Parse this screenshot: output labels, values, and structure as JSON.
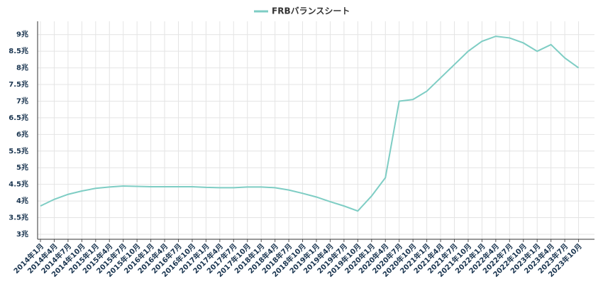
{
  "chart_data": {
    "type": "line",
    "categories": [
      "2014年1月",
      "2014年4月",
      "2014年7月",
      "2014年10月",
      "2015年1月",
      "2015年4月",
      "2015年7月",
      "2015年10月",
      "2016年1月",
      "2016年4月",
      "2016年7月",
      "2016年10月",
      "2017年1月",
      "2017年4月",
      "2017年7月",
      "2017年10月",
      "2018年1月",
      "2018年4月",
      "2018年7月",
      "2018年10月",
      "2019年1月",
      "2019年4月",
      "2019年7月",
      "2019年10月",
      "2020年1月",
      "2020年4月",
      "2020年7月",
      "2020年10月",
      "2021年1月",
      "2021年4月",
      "2021年7月",
      "2021年10月",
      "2022年1月",
      "2022年4月",
      "2022年7月",
      "2022年10月",
      "2023年1月",
      "2023年4月",
      "2023年7月",
      "2023年10月"
    ],
    "series": [
      {
        "name": "FRBバランスシート",
        "color": "#7ecdc4",
        "values": [
          3.85,
          4.05,
          4.2,
          4.3,
          4.38,
          4.42,
          4.45,
          4.44,
          4.43,
          4.43,
          4.43,
          4.43,
          4.41,
          4.4,
          4.4,
          4.42,
          4.42,
          4.4,
          4.33,
          4.23,
          4.12,
          3.98,
          3.85,
          3.7,
          4.15,
          4.7,
          7.0,
          7.05,
          7.3,
          7.7,
          8.1,
          8.5,
          8.8,
          8.95,
          8.9,
          8.75,
          8.5,
          8.7,
          8.3,
          8.0
        ]
      }
    ],
    "ylim": [
      2.85,
      9.4
    ],
    "yticks": [
      {
        "value": 3,
        "label": "3兆"
      },
      {
        "value": 3.5,
        "label": "3.5兆"
      },
      {
        "value": 4,
        "label": "4兆"
      },
      {
        "value": 4.5,
        "label": "4.5兆"
      },
      {
        "value": 5,
        "label": "5兆"
      },
      {
        "value": 5.5,
        "label": "5.5兆"
      },
      {
        "value": 6,
        "label": "6兆"
      },
      {
        "value": 6.5,
        "label": "6.5兆"
      },
      {
        "value": 7,
        "label": "7兆"
      },
      {
        "value": 7.5,
        "label": "7.5兆"
      },
      {
        "value": 8,
        "label": "8兆"
      },
      {
        "value": 8.5,
        "label": "8.5兆"
      },
      {
        "value": 9,
        "label": "9兆"
      }
    ],
    "grid": true
  }
}
